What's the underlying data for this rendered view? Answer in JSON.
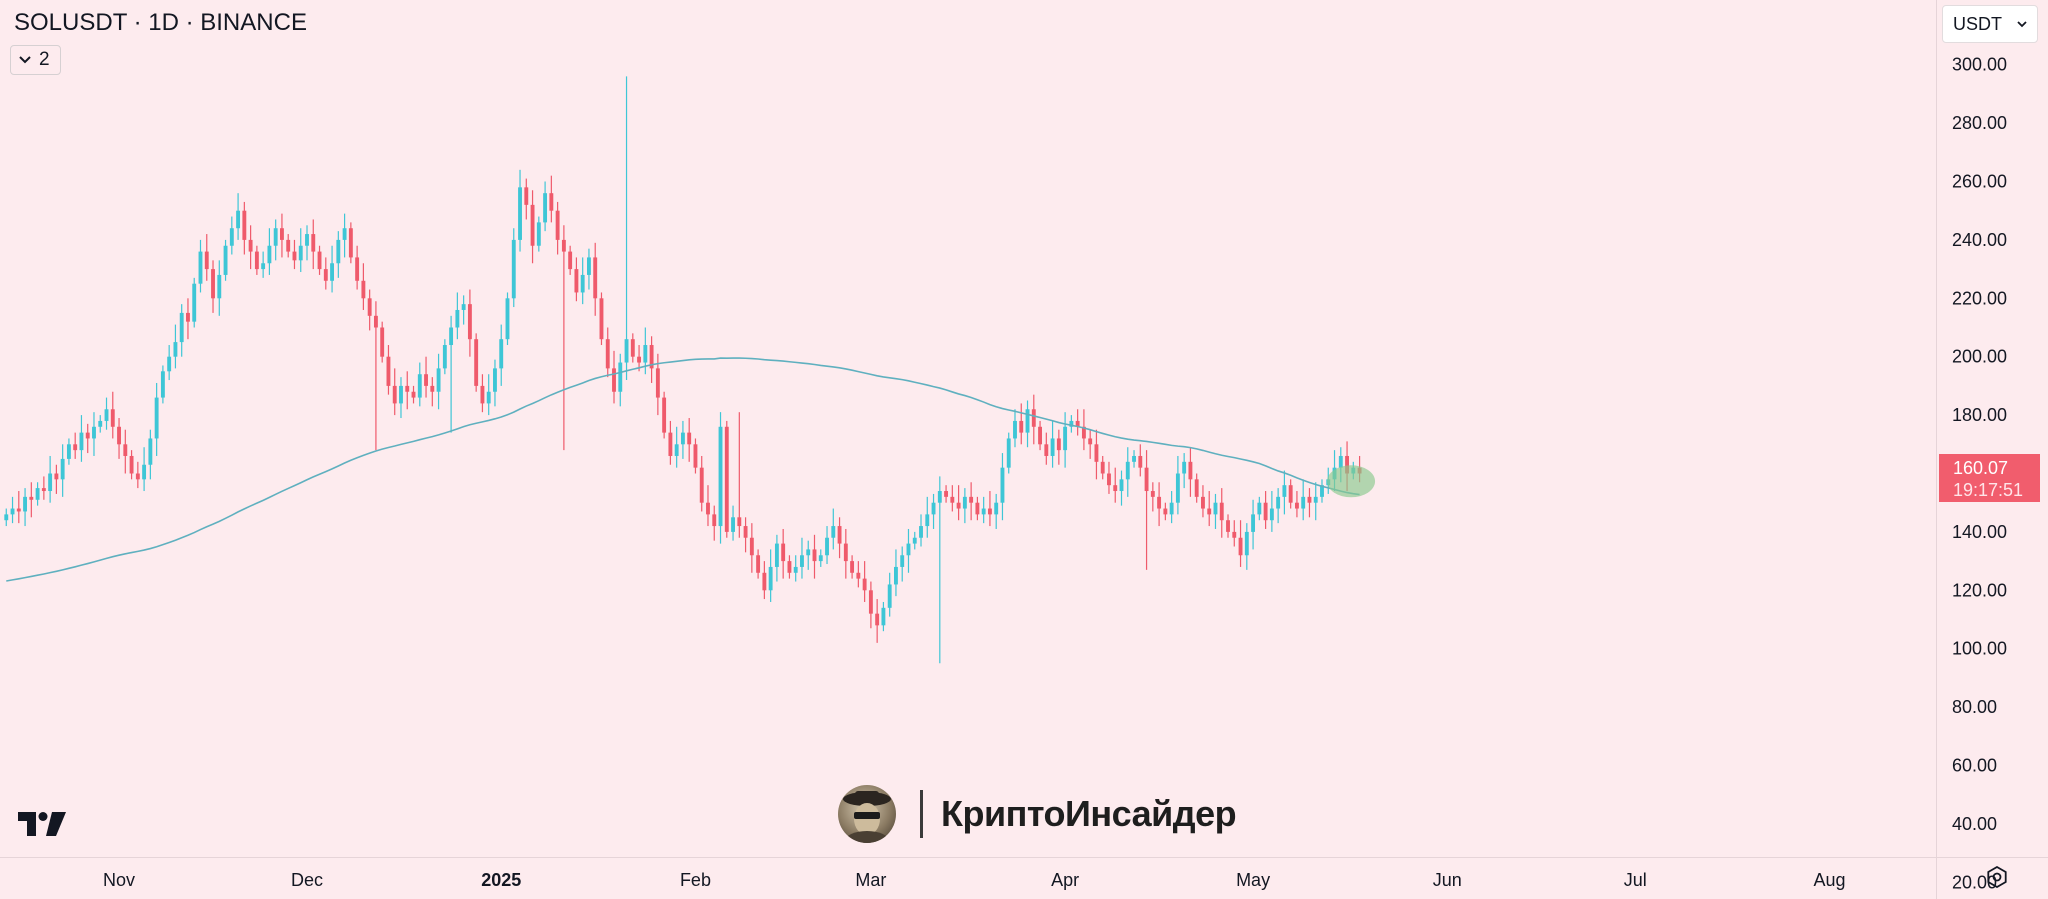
{
  "header": {
    "title": "SOLUSDT · 1D · BINANCE"
  },
  "indicators": {
    "count": "2"
  },
  "currency": {
    "selected": "USDT"
  },
  "price_label": {
    "price": "160.07",
    "countdown": "19:17:51"
  },
  "watermark": {
    "text": "КриптоИнсайдер"
  },
  "colors": {
    "background": "#fdebee",
    "up": "#3ec6d6",
    "down": "#ef5a6b",
    "ma": "#5fb0bf",
    "highlight": "#8bc98d"
  },
  "icons": {
    "indicator_toggle": "chevron-down-icon",
    "currency_select": "chevron-down-icon",
    "logo": "tradingview-logo-icon",
    "settings": "settings-icon"
  },
  "chart_data": {
    "type": "candlestick",
    "symbol": "SOLUSDT",
    "interval": "1D",
    "exchange": "BINANCE",
    "x_range": [
      "2024-10-13",
      "2025-08-18"
    ],
    "ylim": [
      20,
      310
    ],
    "y_ticks": [
      "300.00",
      "280.00",
      "260.00",
      "240.00",
      "220.00",
      "200.00",
      "180.00",
      "160.00",
      "140.00",
      "120.00",
      "100.00",
      "80.00",
      "60.00",
      "40.00",
      "20.00"
    ],
    "x_ticks": [
      {
        "label": "Nov",
        "date": "2024-11-01",
        "bold": false
      },
      {
        "label": "Dec",
        "date": "2024-12-01",
        "bold": false
      },
      {
        "label": "2025",
        "date": "2025-01-01",
        "bold": true
      },
      {
        "label": "Feb",
        "date": "2025-02-01",
        "bold": false
      },
      {
        "label": "Mar",
        "date": "2025-03-01",
        "bold": false
      },
      {
        "label": "Apr",
        "date": "2025-04-01",
        "bold": false
      },
      {
        "label": "May",
        "date": "2025-05-01",
        "bold": false
      },
      {
        "label": "Jun",
        "date": "2025-06-01",
        "bold": false
      },
      {
        "label": "Jul",
        "date": "2025-07-01",
        "bold": false
      },
      {
        "label": "Aug",
        "date": "2025-08-01",
        "bold": false
      }
    ],
    "last_price": 160.07,
    "first_candle_date": "2024-10-14",
    "closes": [
      146,
      148,
      147,
      152,
      151,
      155,
      154,
      160,
      158,
      165,
      170,
      168,
      174,
      172,
      176,
      178,
      182,
      176,
      170,
      166,
      160,
      158,
      163,
      172,
      186,
      195,
      200,
      205,
      215,
      212,
      225,
      236,
      230,
      220,
      228,
      238,
      244,
      250,
      240,
      236,
      230,
      232,
      238,
      244,
      240,
      236,
      233,
      238,
      242,
      236,
      230,
      226,
      232,
      240,
      244,
      234,
      226,
      220,
      214,
      210,
      200,
      190,
      184,
      190,
      188,
      186,
      194,
      190,
      188,
      196,
      204,
      210,
      216,
      218,
      206,
      190,
      184,
      188,
      196,
      206,
      220,
      240,
      258,
      252,
      238,
      246,
      256,
      250,
      240,
      236,
      230,
      222,
      228,
      234,
      220,
      206,
      196,
      188,
      198,
      206,
      200,
      198,
      204,
      196,
      186,
      174,
      166,
      170,
      174,
      170,
      162,
      150,
      146,
      142,
      176,
      140,
      145,
      142,
      138,
      132,
      126,
      120,
      128,
      136,
      130,
      126,
      128,
      132,
      134,
      130,
      132,
      138,
      142,
      136,
      130,
      126,
      124,
      120,
      112,
      108,
      114,
      122,
      128,
      132,
      136,
      138,
      142,
      146,
      150,
      154,
      152,
      150,
      148,
      152,
      150,
      146,
      148,
      146,
      150,
      162,
      172,
      178,
      174,
      182,
      176,
      170,
      166,
      172,
      168,
      176,
      178,
      176,
      172,
      170,
      164,
      160,
      156,
      154,
      158,
      164,
      166,
      162,
      154,
      152,
      148,
      146,
      150,
      160,
      164,
      158,
      152,
      148,
      146,
      150,
      144,
      140,
      138,
      132,
      140,
      146,
      150,
      144,
      148,
      152,
      156,
      150,
      148,
      152,
      150,
      152,
      156,
      158,
      162,
      166,
      160,
      162,
      160
    ]
  }
}
